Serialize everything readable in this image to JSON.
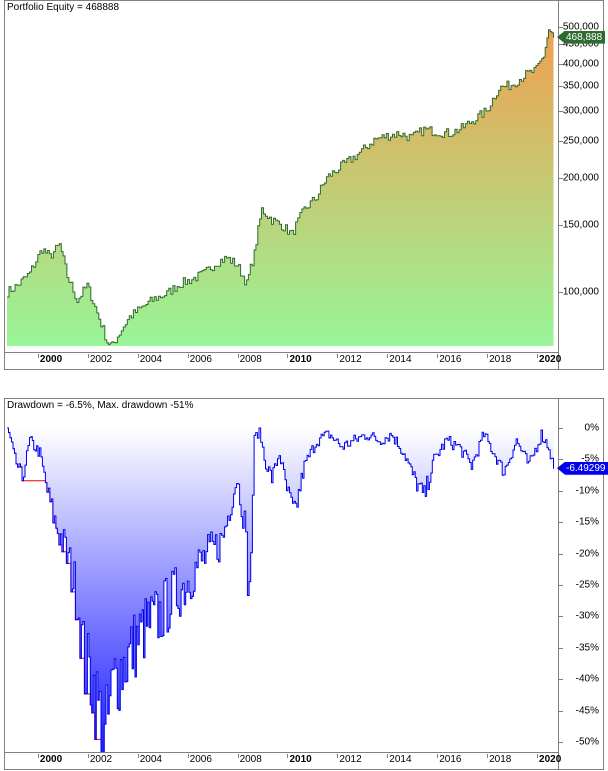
{
  "equity_panel": {
    "title": "Portfolio Equity = 468888",
    "current_value_label": "468,888",
    "colors": {
      "line": "#2f6b2f",
      "fill_top": "#f0a050",
      "fill_bottom": "#98f598",
      "badge": "#2e6b2e"
    }
  },
  "drawdown_panel": {
    "title": "Drawdown = -6.5%, Max. drawdown -51%",
    "current_value_label": "-6.49299",
    "colors": {
      "line": "#0000ee",
      "fill_top": "#ffffff",
      "fill_bottom": "#2020ff",
      "max_dd_line": "#ee0000",
      "badge": "#0000ee"
    }
  },
  "x_axis": {
    "ticks": [
      {
        "label": "2000",
        "major": true
      },
      {
        "label": "2002",
        "major": false
      },
      {
        "label": "2004",
        "major": false
      },
      {
        "label": "2006",
        "major": false
      },
      {
        "label": "2008",
        "major": false
      },
      {
        "label": "2010",
        "major": true
      },
      {
        "label": "2012",
        "major": false
      },
      {
        "label": "2014",
        "major": false
      },
      {
        "label": "2016",
        "major": false
      },
      {
        "label": "2018",
        "major": false
      },
      {
        "label": "2020",
        "major": true
      }
    ]
  },
  "chart_data": [
    {
      "type": "area",
      "title": "Portfolio Equity = 468888",
      "xlabel": "",
      "ylabel": "",
      "yscale": "log",
      "ylim": [
        70000,
        520000
      ],
      "yticks": [
        "100,000",
        "150,000",
        "200,000",
        "250,000",
        "300,000",
        "350,000",
        "400,000",
        "450,000",
        "500,000"
      ],
      "ytick_values": [
        100000,
        150000,
        200000,
        250000,
        300000,
        350000,
        400000,
        450000,
        500000
      ],
      "grid": false,
      "legend": "none",
      "x": [
        1998.6,
        1999.0,
        1999.5,
        2000.0,
        2000.3,
        2000.7,
        2001.0,
        2001.4,
        2001.8,
        2002.2,
        2002.6,
        2002.8,
        2003.1,
        2003.5,
        2004.0,
        2004.5,
        2005.0,
        2005.5,
        2006.0,
        2006.5,
        2007.0,
        2007.4,
        2007.8,
        2008.2,
        2008.5,
        2008.8,
        2009.2,
        2009.6,
        2010.0,
        2010.5,
        2011.0,
        2011.4,
        2011.8,
        2012.3,
        2012.8,
        2013.3,
        2013.8,
        2014.3,
        2014.8,
        2015.3,
        2015.8,
        2016.3,
        2016.8,
        2017.3,
        2017.8,
        2018.3,
        2018.8,
        2019.3,
        2019.8,
        2020.1,
        2020.3,
        2020.5
      ],
      "values": [
        100000,
        104000,
        112000,
        130000,
        124000,
        133000,
        110000,
        95000,
        104000,
        88000,
        74000,
        72000,
        78000,
        86000,
        91000,
        96000,
        99000,
        105000,
        108000,
        112000,
        120000,
        123000,
        118000,
        105000,
        126000,
        165000,
        155000,
        150000,
        142000,
        165000,
        178000,
        200000,
        210000,
        222000,
        235000,
        252000,
        258000,
        262000,
        255000,
        268000,
        265000,
        262000,
        270000,
        285000,
        300000,
        345000,
        352000,
        372000,
        385000,
        420000,
        492000,
        468888
      ]
    },
    {
      "type": "area",
      "title": "Drawdown = -6.5%, Max. drawdown -51%",
      "xlabel": "",
      "ylabel": "",
      "ylim": [
        -52,
        0
      ],
      "yticks": [
        "0%",
        "-5%",
        "-10%",
        "-15%",
        "-20%",
        "-25%",
        "-30%",
        "-35%",
        "-40%",
        "-45%",
        "-50%"
      ],
      "grid": false,
      "legend": "none",
      "max_drawdown": -51,
      "current_drawdown": -6.49299,
      "x": [
        1998.6,
        1998.9,
        1999.2,
        1999.5,
        1999.9,
        2000.2,
        2000.5,
        2000.8,
        2001.1,
        2001.4,
        2001.7,
        2002.0,
        2002.3,
        2002.5,
        2002.7,
        2002.9,
        2003.2,
        2003.5,
        2003.9,
        2004.3,
        2004.7,
        2005.2,
        2005.7,
        2006.2,
        2006.7,
        2007.2,
        2007.5,
        2007.8,
        2008.1,
        2008.3,
        2008.5,
        2008.7,
        2008.9,
        2009.2,
        2009.5,
        2009.8,
        2010.1,
        2010.5,
        2011.0,
        2011.5,
        2012.0,
        2012.5,
        2013.0,
        2013.5,
        2014.0,
        2014.5,
        2014.9,
        2015.3,
        2015.7,
        2016.2,
        2016.7,
        2017.2,
        2017.7,
        2018.1,
        2018.5,
        2019.0,
        2019.5,
        2020.0,
        2020.3,
        2020.5
      ],
      "values": [
        0,
        -5,
        -8,
        -2,
        -4,
        -10,
        -15,
        -18,
        -22,
        -27,
        -38,
        -40,
        -46,
        -51,
        -44,
        -40,
        -38,
        -36,
        -33,
        -31,
        -30,
        -27,
        -25,
        -22,
        -20,
        -18,
        -13,
        -8,
        -15,
        -27,
        -2,
        0,
        -5,
        -8,
        -4,
        -10,
        -14,
        -6,
        -2,
        -1,
        -3,
        -2,
        -1,
        -2,
        -1,
        -4,
        -8,
        -11,
        -5,
        -2,
        -3,
        -6,
        -1,
        -4,
        -7,
        -2,
        -6,
        -1,
        -3,
        -6.5
      ]
    }
  ]
}
